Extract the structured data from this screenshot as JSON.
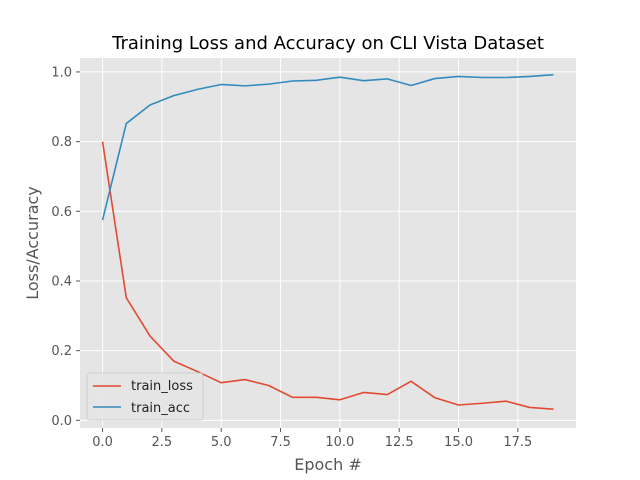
{
  "chart_data": {
    "type": "line",
    "title": "Training Loss and Accuracy on CLI Vista Dataset",
    "xlabel": "Epoch #",
    "ylabel": "Loss/Accuracy",
    "xlim": [
      -0.95,
      19.95
    ],
    "ylim": [
      -0.022,
      1.04
    ],
    "xticks": [
      0.0,
      2.5,
      5.0,
      7.5,
      10.0,
      12.5,
      15.0,
      17.5
    ],
    "xtick_labels": [
      "0.0",
      "2.5",
      "5.0",
      "7.5",
      "10.0",
      "12.5",
      "15.0",
      "17.5"
    ],
    "yticks": [
      0.0,
      0.2,
      0.4,
      0.6,
      0.8,
      1.0
    ],
    "ytick_labels": [
      "0.0",
      "0.2",
      "0.4",
      "0.6",
      "0.8",
      "1.0"
    ],
    "grid": true,
    "legend_position": "lower-left",
    "style": {
      "background": "#e5e5e5",
      "grid_color": "#ffffff"
    },
    "x": [
      0,
      1,
      2,
      3,
      4,
      5,
      6,
      7,
      8,
      9,
      10,
      11,
      12,
      13,
      14,
      15,
      16,
      17,
      18,
      19
    ],
    "series": [
      {
        "name": "train_loss",
        "color": "#e24a33",
        "values": [
          0.8,
          0.352,
          0.242,
          0.17,
          0.14,
          0.108,
          0.117,
          0.1,
          0.066,
          0.066,
          0.059,
          0.08,
          0.074,
          0.112,
          0.065,
          0.044,
          0.049,
          0.055,
          0.037,
          0.032
        ]
      },
      {
        "name": "train_acc",
        "color": "#348abd",
        "values": [
          0.575,
          0.852,
          0.905,
          0.932,
          0.95,
          0.964,
          0.96,
          0.965,
          0.974,
          0.976,
          0.985,
          0.975,
          0.98,
          0.961,
          0.981,
          0.987,
          0.984,
          0.984,
          0.987,
          0.992
        ]
      }
    ]
  }
}
